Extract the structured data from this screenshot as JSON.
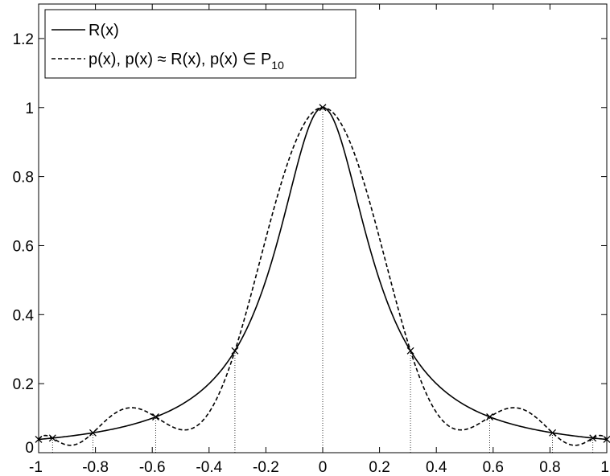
{
  "chart_data": {
    "type": "line",
    "title": "",
    "xlabel": "",
    "ylabel": "",
    "xlim": [
      -1,
      1
    ],
    "ylim": [
      0,
      1.3
    ],
    "x_ticks": [
      "-1",
      "-0.8",
      "-0.6",
      "-0.4",
      "-0.2",
      "0",
      "0.2",
      "0.4",
      "0.6",
      "0.8",
      "1"
    ],
    "y_ticks": [
      "0",
      "0.2",
      "0.4",
      "0.6",
      "0.8",
      "1",
      "1.2"
    ],
    "grid": false,
    "legend": {
      "placement": "top-left",
      "entries": [
        {
          "text": "R(x)"
        },
        {
          "text": "p(x), p(x) ≈ R(x), p(x) ∈ P",
          "subscript": "10"
        }
      ]
    },
    "series": [
      {
        "style": "solid",
        "function": "1/(1+25x^2)",
        "samples": 401
      },
      {
        "style": "dashed",
        "function": "degree-10 interpolant of R(x) at the 11 nodes",
        "samples": 401
      }
    ],
    "nodes": {
      "x": [
        -1,
        -0.951,
        -0.809,
        -0.588,
        -0.309,
        0,
        0.309,
        0.588,
        0.809,
        0.951,
        1
      ],
      "y": [
        0.0385,
        0.0424,
        0.0576,
        0.1037,
        0.2952,
        1.0,
        0.2952,
        0.1037,
        0.0576,
        0.0424,
        0.0385
      ],
      "marker": "x",
      "dropline": "dotted"
    }
  }
}
